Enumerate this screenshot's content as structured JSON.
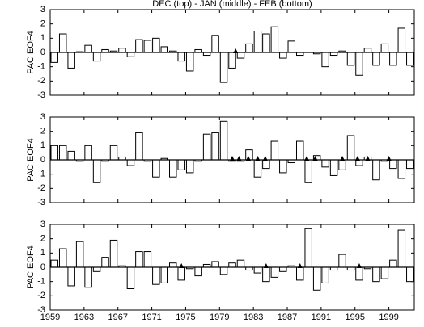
{
  "chart_data": [
    {
      "type": "bar",
      "title": "DEC (top) - JAN (middle) - FEB (bottom)",
      "ylabel": "PAC EOF4",
      "x": [
        1959,
        1960,
        1961,
        1962,
        1963,
        1964,
        1965,
        1966,
        1967,
        1968,
        1969,
        1970,
        1971,
        1972,
        1973,
        1974,
        1975,
        1976,
        1977,
        1978,
        1979,
        1980,
        1981,
        1982,
        1983,
        1984,
        1985,
        1986,
        1987,
        1988,
        1989,
        1990,
        1991,
        1992,
        1993,
        1994,
        1995,
        1996,
        1997,
        1998,
        1999,
        2000,
        2001
      ],
      "values": [
        -0.7,
        1.3,
        -1.1,
        0.05,
        0.5,
        -0.6,
        0.2,
        0.1,
        0.3,
        -0.3,
        0.9,
        0.85,
        1.0,
        0.4,
        0.1,
        -0.6,
        -1.3,
        0.2,
        -0.2,
        1.2,
        -2.1,
        -1.1,
        -0.4,
        0.6,
        1.5,
        1.3,
        1.8,
        -0.4,
        0.8,
        -0.2,
        0.0,
        -0.1,
        -1.0,
        -0.2,
        0.1,
        -0.9,
        -1.6,
        0.3,
        -0.9,
        0.6,
        -0.9,
        1.7,
        -0.9
      ],
      "markers": [
        1980.9
      ],
      "xlim": [
        1959,
        2002
      ],
      "xticks": [
        1959,
        1963,
        1967,
        1971,
        1975,
        1979,
        1983,
        1987,
        1991,
        1995,
        1999
      ],
      "ylim": [
        -3,
        3
      ],
      "yticks": [
        -3,
        -2,
        -1,
        0,
        1,
        2,
        3
      ],
      "color": "#ffffff"
    },
    {
      "type": "bar",
      "ylabel": "PAC EOF4",
      "x": [
        1959,
        1960,
        1961,
        1962,
        1963,
        1964,
        1965,
        1966,
        1967,
        1968,
        1969,
        1970,
        1971,
        1972,
        1973,
        1974,
        1975,
        1976,
        1977,
        1978,
        1979,
        1980,
        1981,
        1982,
        1983,
        1984,
        1985,
        1986,
        1987,
        1988,
        1989,
        1990,
        1991,
        1992,
        1993,
        1994,
        1995,
        1996,
        1997,
        1998,
        1999,
        2000,
        2001
      ],
      "values": [
        1.0,
        1.0,
        0.6,
        -0.1,
        1.0,
        -1.6,
        -0.1,
        1.0,
        0.2,
        -0.4,
        1.9,
        -0.1,
        -1.2,
        0.1,
        -1.2,
        -0.7,
        -0.9,
        -0.1,
        1.8,
        1.9,
        2.7,
        -0.1,
        -0.1,
        0.7,
        -1.2,
        -0.6,
        1.3,
        -0.9,
        -0.2,
        1.3,
        -1.6,
        0.3,
        -0.5,
        -1.1,
        -0.7,
        1.7,
        -0.4,
        0.2,
        -1.4,
        -0.1,
        -0.6,
        -1.3,
        -0.6
      ],
      "markers": [
        1980.5,
        1981.3,
        1982.4,
        1983.5,
        1984.4,
        1989.3,
        1990.3,
        1993.5,
        1995.3,
        1996.5,
        1999.0
      ],
      "xlim": [
        1959,
        2002
      ],
      "xticks": [
        1959,
        1963,
        1967,
        1971,
        1975,
        1979,
        1983,
        1987,
        1991,
        1995,
        1999
      ],
      "ylim": [
        -3,
        3
      ],
      "yticks": [
        -3,
        -2,
        -1,
        0,
        1,
        2,
        3
      ],
      "color": "#ffffff"
    },
    {
      "type": "bar",
      "ylabel": "PAC EOF4",
      "x": [
        1959,
        1960,
        1961,
        1962,
        1963,
        1964,
        1965,
        1966,
        1967,
        1968,
        1969,
        1970,
        1971,
        1972,
        1973,
        1974,
        1975,
        1976,
        1977,
        1978,
        1979,
        1980,
        1981,
        1982,
        1983,
        1984,
        1985,
        1986,
        1987,
        1988,
        1989,
        1990,
        1991,
        1992,
        1993,
        1994,
        1995,
        1996,
        1997,
        1998,
        1999,
        2000,
        2001
      ],
      "values": [
        0.5,
        1.3,
        -1.3,
        1.8,
        -1.4,
        -0.3,
        0.7,
        1.9,
        0.1,
        -1.5,
        1.1,
        1.1,
        -1.2,
        -1.1,
        0.3,
        -0.9,
        -0.1,
        -0.6,
        0.2,
        0.4,
        -0.5,
        0.3,
        0.5,
        -0.2,
        -0.4,
        -1.0,
        -0.7,
        -0.3,
        0.1,
        -0.9,
        2.7,
        -1.6,
        -1.1,
        -0.2,
        0.9,
        -0.2,
        -0.9,
        -0.1,
        -1.0,
        -0.8,
        0.5,
        2.6,
        -1.0
      ],
      "markers": [
        1974.5,
        1984.5,
        1988.5,
        1995.5
      ],
      "xlim": [
        1959,
        2002
      ],
      "xticks": [
        1959,
        1963,
        1967,
        1971,
        1975,
        1979,
        1983,
        1987,
        1991,
        1995,
        1999
      ],
      "ylim": [
        -3,
        3
      ],
      "yticks": [
        -3,
        -2,
        -1,
        0,
        1,
        2,
        3
      ],
      "color": "#ffffff",
      "xtick_labels": true
    }
  ]
}
